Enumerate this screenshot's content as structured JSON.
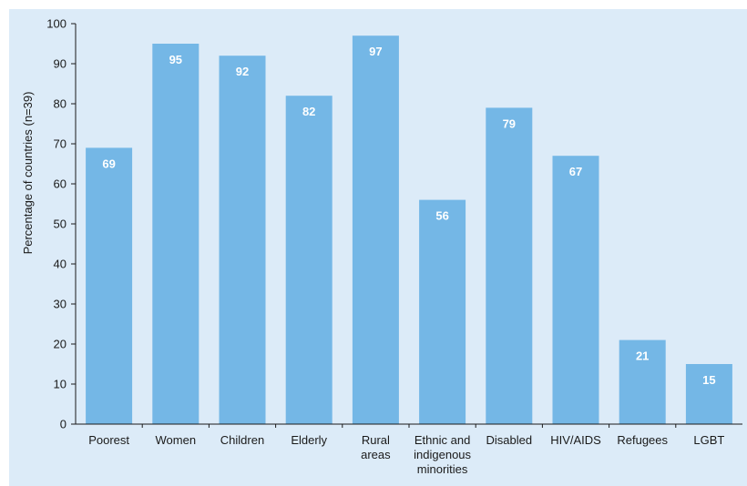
{
  "chart_data": {
    "type": "bar",
    "title": "",
    "xlabel": "",
    "ylabel": "Percentage of countries (n=39)",
    "ylim": [
      0,
      100
    ],
    "yticks": [
      0,
      10,
      20,
      30,
      40,
      50,
      60,
      70,
      80,
      90,
      100
    ],
    "grid": false,
    "legend": "none",
    "categories": [
      [
        "Poorest"
      ],
      [
        "Women"
      ],
      [
        "Children"
      ],
      [
        "Elderly"
      ],
      [
        "Rural",
        "areas"
      ],
      [
        "Ethnic and",
        "indigenous",
        "minorities"
      ],
      [
        "Disabled"
      ],
      [
        "HIV/AIDS"
      ],
      [
        "Refugees"
      ],
      [
        "LGBT"
      ]
    ],
    "values": [
      69,
      95,
      92,
      82,
      97,
      56,
      79,
      67,
      21,
      15
    ],
    "colors": {
      "bar": "#74b7e6",
      "background": "#dcebf8",
      "axis": "#1a1a1a"
    }
  }
}
